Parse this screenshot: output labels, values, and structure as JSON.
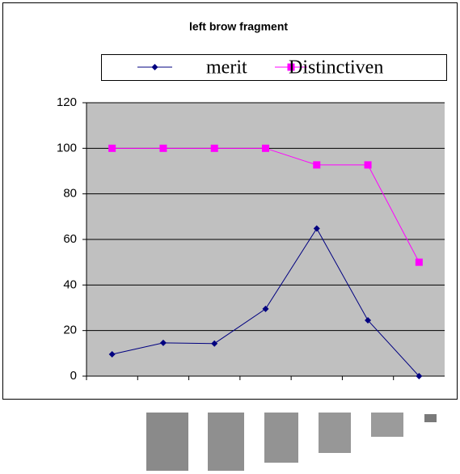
{
  "chart_data": {
    "type": "line",
    "title": "left brow fragment",
    "categories": [
      null,
      null,
      null,
      null,
      null,
      null,
      null
    ],
    "series": [
      {
        "name": "merit",
        "color": "#000080",
        "marker": "diamond",
        "values": [
          9.6,
          14.6,
          14.3,
          29.5,
          64.8,
          24.5,
          0
        ]
      },
      {
        "name": "Distinctiven",
        "color": "#ff00ff",
        "marker": "square",
        "values": [
          100,
          100,
          100,
          100,
          92.7,
          92.7,
          50
        ]
      }
    ],
    "ylim": [
      0,
      120
    ],
    "yticks": [
      0,
      20,
      40,
      60,
      80,
      100,
      120
    ],
    "grid": true,
    "legend": "top"
  }
}
